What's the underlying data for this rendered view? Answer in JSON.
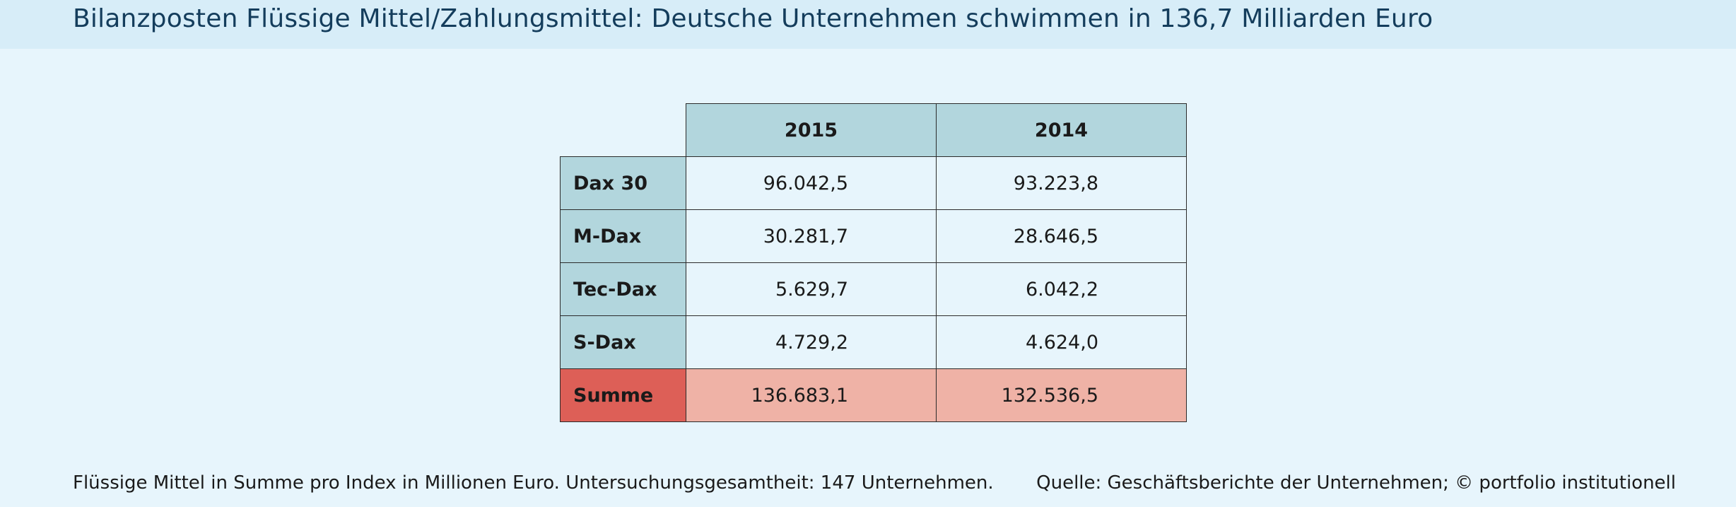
{
  "title": "Bilanzposten Flüssige Mittel/Zahlungsmittel: Deutsche Unternehmen schwimmen in 136,7 Milliarden Euro",
  "chart_data": {
    "type": "table",
    "columns": [
      "2015",
      "2014"
    ],
    "rows": [
      {
        "label": "Dax 30",
        "values": [
          "96.042,5",
          "93.223,8"
        ]
      },
      {
        "label": "M-Dax",
        "values": [
          "30.281,7",
          "28.646,5"
        ]
      },
      {
        "label": "Tec-Dax",
        "values": [
          "5.629,7",
          "6.042,2"
        ]
      },
      {
        "label": "S-Dax",
        "values": [
          "4.729,2",
          "4.624,0"
        ]
      }
    ],
    "total": {
      "label": "Summe",
      "values": [
        "136.683,1",
        "132.536,5"
      ]
    }
  },
  "footnote": "Flüssige Mittel in Summe pro Index in Millionen Euro. Untersuchungsgesamtheit: 147 Unternehmen.",
  "source": "Quelle: Geschäftsberichte der Unternehmen; © portfolio institutionell",
  "colors": {
    "header_bg": "#b2d6dd",
    "sum_label_bg": "#dd5f57",
    "sum_value_bg": "#efb2a6",
    "title_color": "#143d5c"
  }
}
